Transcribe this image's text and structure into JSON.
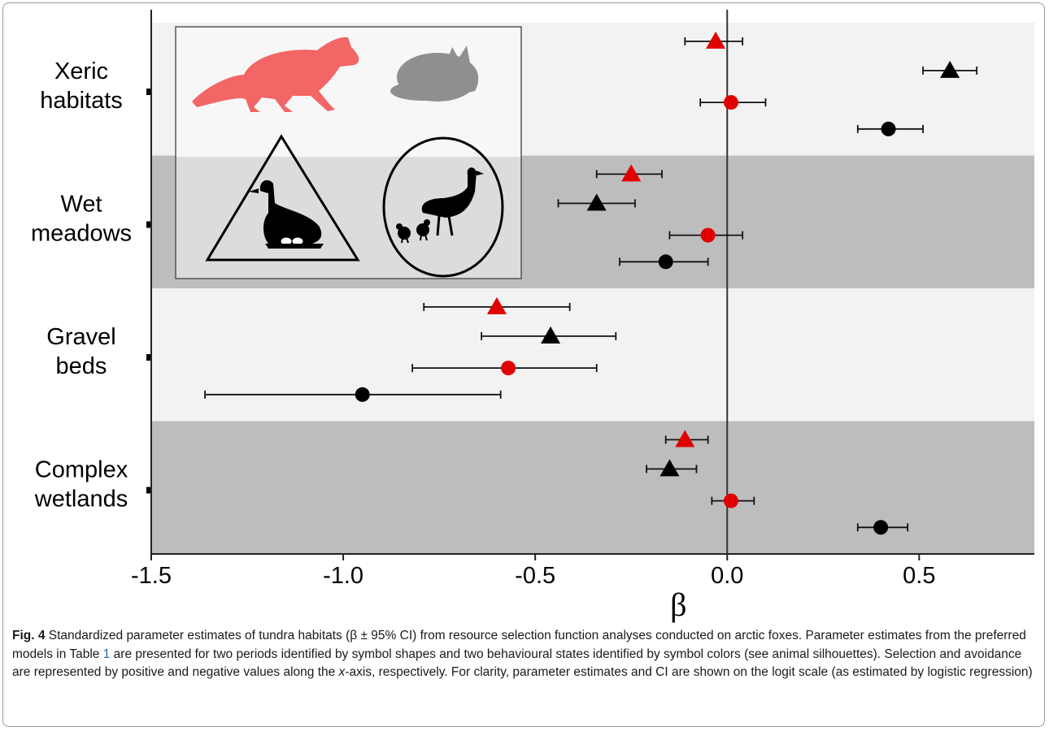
{
  "chart_data": {
    "type": "scatter",
    "categories": [
      "Xeric habitats",
      "Wet meadows",
      "Gravel beds",
      "Complex wetlands"
    ],
    "category_label_lines": [
      [
        "Xeric",
        "habitats"
      ],
      [
        "Wet",
        "meadows"
      ],
      [
        "Gravel",
        "beds"
      ],
      [
        "Complex",
        "wetlands"
      ]
    ],
    "xlabel": "β",
    "xlim": [
      -1.5,
      0.8
    ],
    "xticks": [
      -1.5,
      -1.0,
      -0.5,
      0.0,
      0.5
    ],
    "xtick_labels": [
      "-1.5",
      "-1.0",
      "-0.5",
      "0.0",
      "0.5"
    ],
    "band_colors": [
      "#f2f2f2",
      "#bdbdbd",
      "#f2f2f2",
      "#bdbdbd"
    ],
    "reference_line_x": 0.0,
    "series": [
      {
        "key": "tri_red",
        "shape": "triangle",
        "color": "#e00000",
        "estimates": [
          -0.03,
          -0.25,
          -0.6,
          -0.11
        ],
        "ci_low": [
          -0.11,
          -0.34,
          -0.79,
          -0.16
        ],
        "ci_high": [
          0.04,
          -0.17,
          -0.41,
          -0.05
        ]
      },
      {
        "key": "tri_black",
        "shape": "triangle",
        "color": "#000000",
        "estimates": [
          0.58,
          -0.34,
          -0.46,
          -0.15
        ],
        "ci_low": [
          0.51,
          -0.44,
          -0.64,
          -0.21
        ],
        "ci_high": [
          0.65,
          -0.24,
          -0.29,
          -0.08
        ]
      },
      {
        "key": "circ_red",
        "shape": "circle",
        "color": "#e00000",
        "estimates": [
          0.01,
          -0.05,
          -0.57,
          0.01
        ],
        "ci_low": [
          -0.07,
          -0.15,
          -0.82,
          -0.04
        ],
        "ci_high": [
          0.1,
          0.04,
          -0.34,
          0.07
        ]
      },
      {
        "key": "circ_black",
        "shape": "circle",
        "color": "#000000",
        "estimates": [
          0.42,
          -0.16,
          -0.95,
          0.4
        ],
        "ci_low": [
          0.34,
          -0.28,
          -1.36,
          0.34
        ],
        "ci_high": [
          0.51,
          -0.05,
          -0.59,
          0.47
        ]
      }
    ],
    "legend": {
      "placement": "top-left",
      "items": [
        {
          "name": "red-fox-silhouette-icon",
          "color": "#f26666"
        },
        {
          "name": "arctic-fox-silhouette-icon",
          "color": "#8f8f8f"
        },
        {
          "name": "goose-on-nest-triangle-icon",
          "color": "#000000"
        },
        {
          "name": "goose-with-goslings-circle-icon",
          "color": "#000000"
        }
      ]
    }
  },
  "caption": {
    "label": "Fig. 4",
    "text_before_ref": " Standardized parameter estimates of tundra habitats (β ± 95% CI) from resource selection function analyses conducted on arctic foxes. Parameter estimates from the preferred models in Table ",
    "table_ref": "1",
    "text_before_italic": " are presented for two periods identified by symbol shapes and two behavioural states identified by symbol colors (see animal silhouettes). Selection and avoidance are represented by positive and negative values along the ",
    "italic": "x",
    "text_after_italic": "-axis, respectively. For clarity, parameter estimates and CI are shown on the logit scale (as estimated by logistic regression)"
  }
}
